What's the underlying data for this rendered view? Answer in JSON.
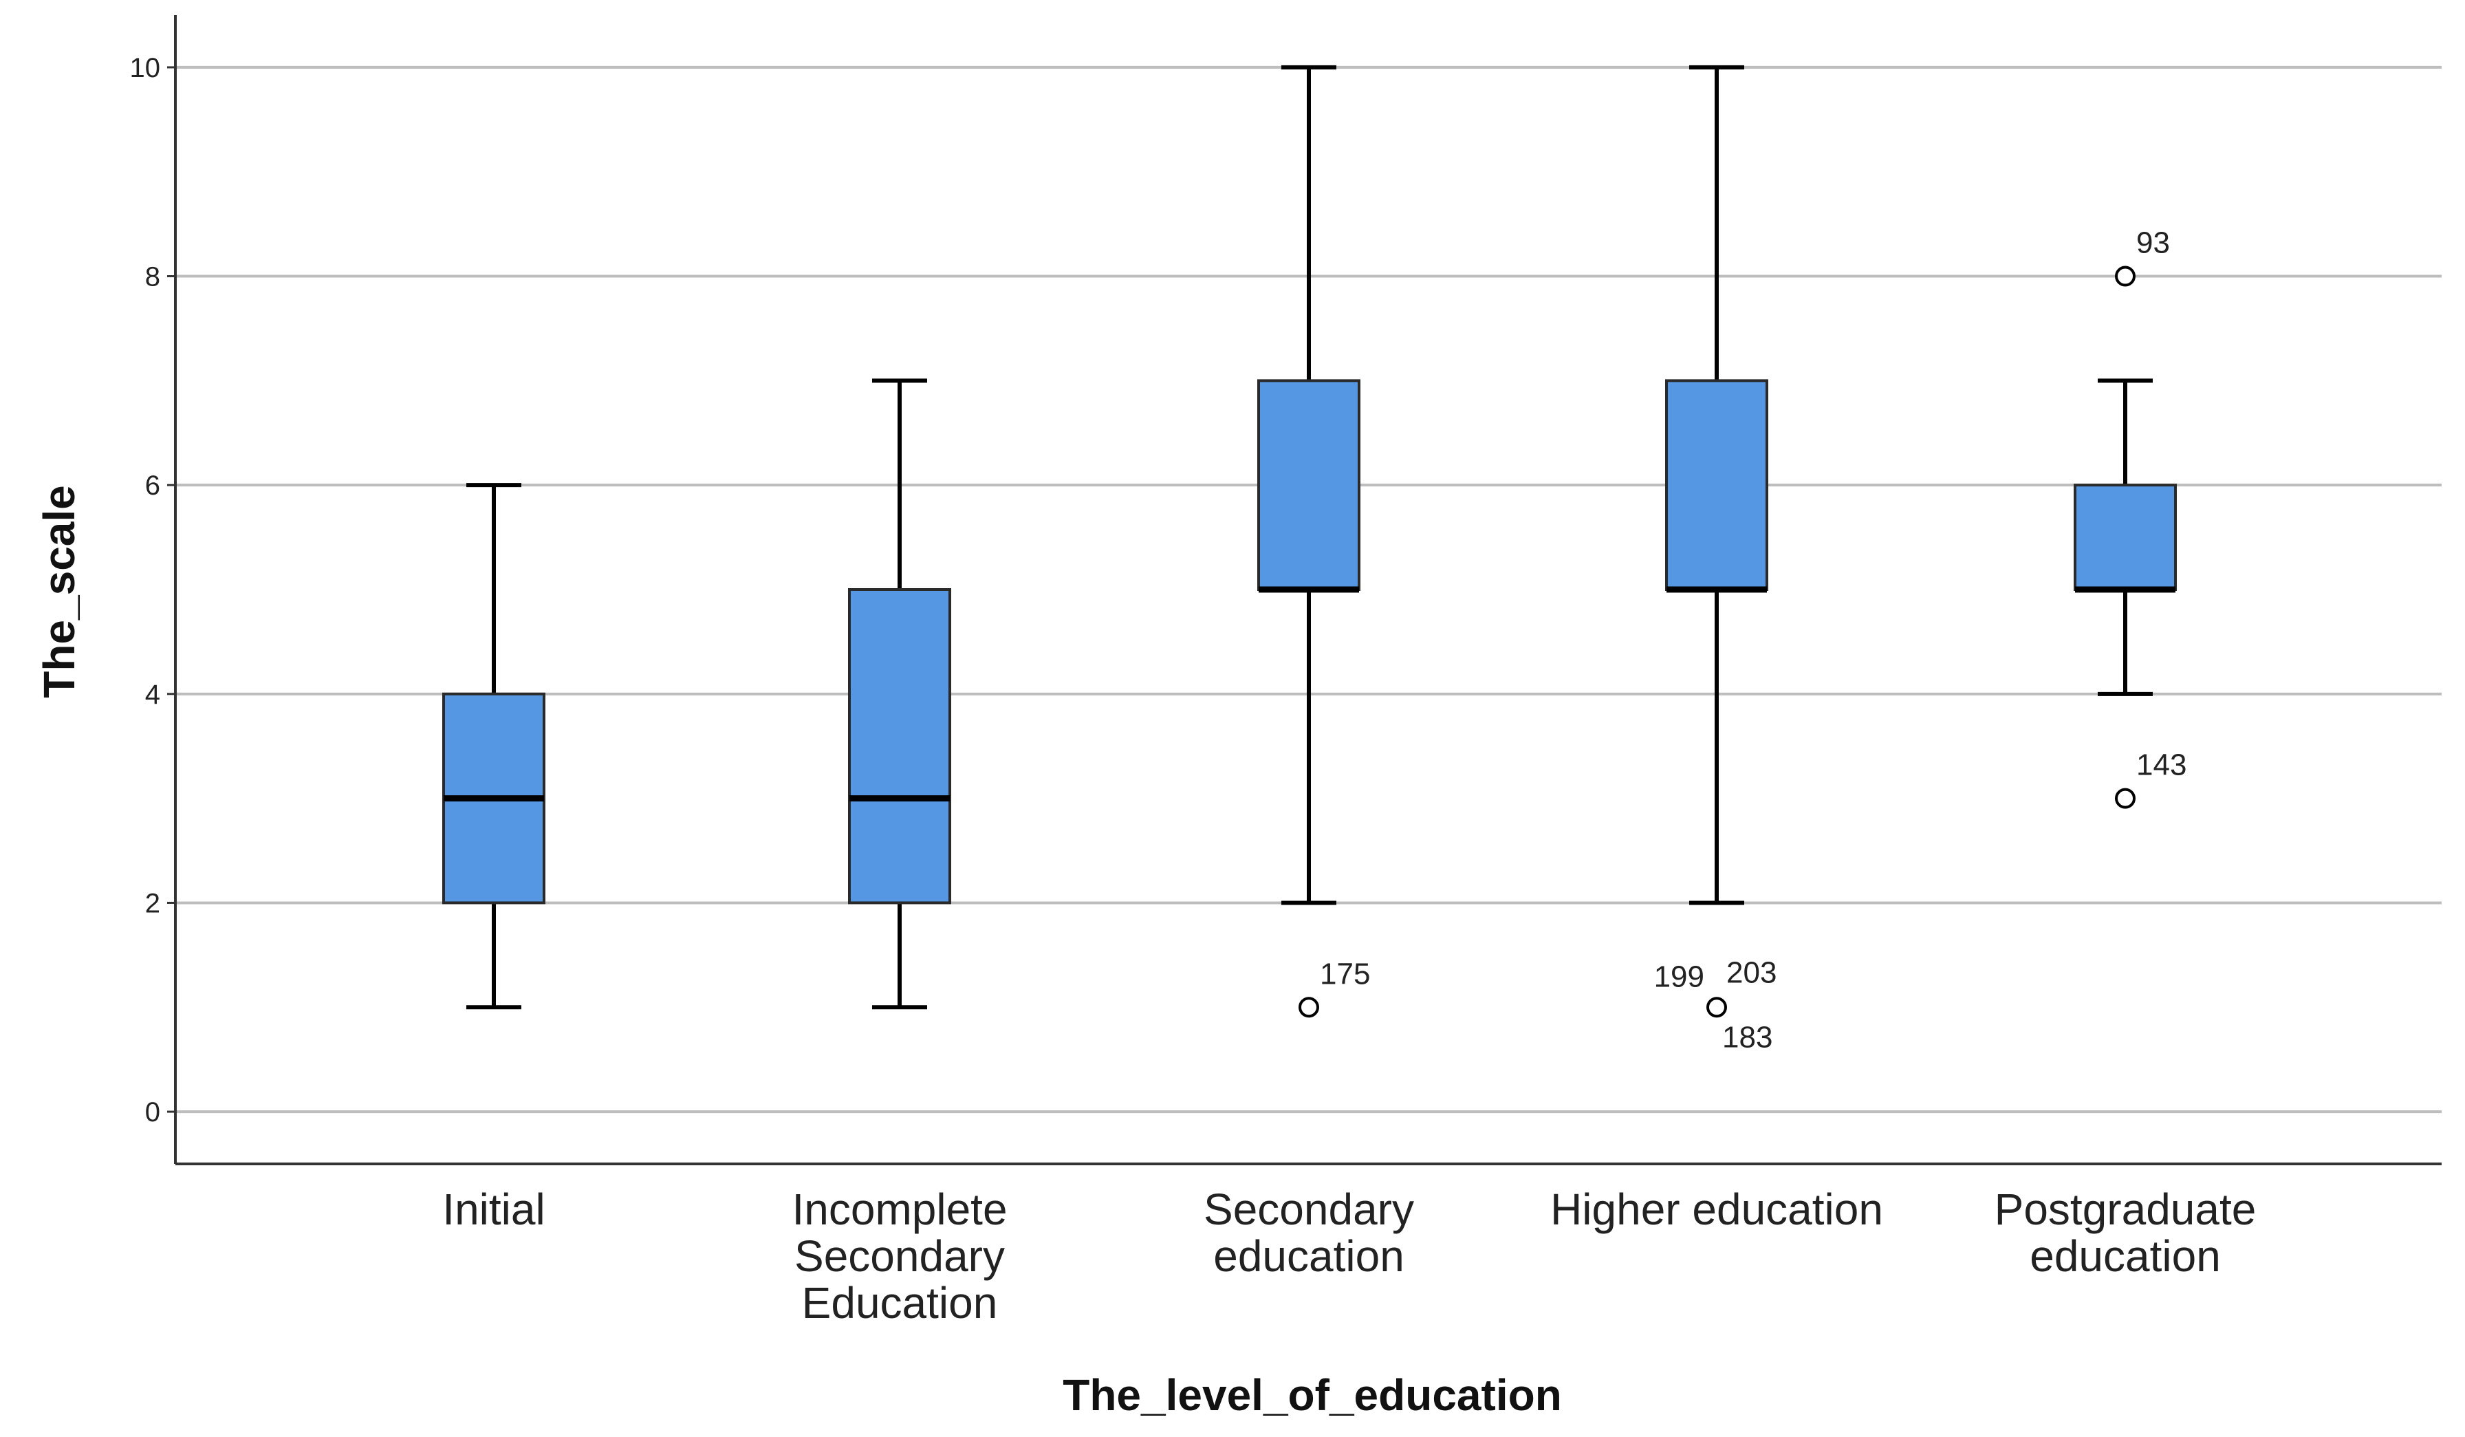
{
  "chart_data": {
    "type": "boxplot",
    "title": "",
    "xlabel": "The_level_of_education",
    "ylabel": "The_scale",
    "ylim": [
      -0.5,
      10.5
    ],
    "yticks": [
      0,
      2,
      4,
      6,
      8,
      10
    ],
    "grid": true,
    "box_color": "#5597e2",
    "categories": [
      {
        "label": [
          "Initial"
        ],
        "min": 1,
        "q1": 2,
        "median": 3,
        "q3": 4,
        "max": 6,
        "outliers": []
      },
      {
        "label": [
          "Incomplete",
          "Secondary",
          "Education"
        ],
        "min": 1,
        "q1": 2,
        "median": 3,
        "q3": 5,
        "max": 7,
        "outliers": []
      },
      {
        "label": [
          "Secondary",
          "education"
        ],
        "min": 2,
        "q1": 5,
        "median": 5,
        "q3": 7,
        "max": 10,
        "outliers": [
          {
            "value": 1,
            "ids": [
              "175"
            ]
          }
        ]
      },
      {
        "label": [
          "Higher education"
        ],
        "min": 2,
        "q1": 5,
        "median": 5,
        "q3": 7,
        "max": 10,
        "outliers": [
          {
            "value": 1,
            "ids": [
              "199",
              "203",
              "183"
            ]
          }
        ]
      },
      {
        "label": [
          "Postgraduate",
          "education"
        ],
        "min": 4,
        "q1": 5,
        "median": 5,
        "q3": 6,
        "max": 7,
        "outliers": [
          {
            "value": 8,
            "ids": [
              "93"
            ]
          },
          {
            "value": 3,
            "ids": [
              "143"
            ]
          }
        ]
      }
    ]
  }
}
